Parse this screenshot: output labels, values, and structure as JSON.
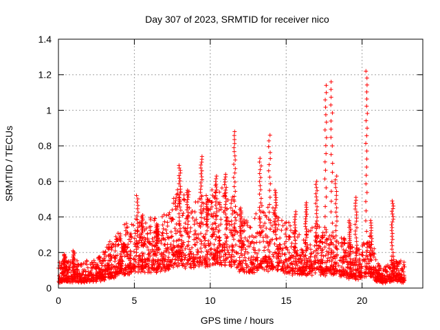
{
  "chart_data": {
    "type": "scatter",
    "title": "Day 307 of 2023, SRMTID for receiver nico",
    "xlabel": "GPS time / hours",
    "ylabel": "SRMTID / TECUs",
    "xlim": [
      0,
      24
    ],
    "ylim": [
      0,
      1.4
    ],
    "xticks": [
      0,
      5,
      10,
      15,
      20
    ],
    "xtick_labels": [
      "0",
      "5",
      "10",
      "15",
      "20"
    ],
    "yticks": [
      0,
      0.2,
      0.4,
      0.6,
      0.8,
      1,
      1.2,
      1.4
    ],
    "ytick_labels": [
      "0",
      "0.2",
      "0.4",
      "0.6",
      "0.8",
      "1",
      "1.2",
      "1.4"
    ],
    "grid": true,
    "marker": "+",
    "color": "#ff0000",
    "series": [
      {
        "name": "SRMTID",
        "profile": [
          [
            0.0,
            0.08
          ],
          [
            0.5,
            0.09
          ],
          [
            1.0,
            0.09
          ],
          [
            1.5,
            0.08
          ],
          [
            2.0,
            0.09
          ],
          [
            2.5,
            0.1
          ],
          [
            3.0,
            0.12
          ],
          [
            3.5,
            0.15
          ],
          [
            4.0,
            0.18
          ],
          [
            4.5,
            0.21
          ],
          [
            5.0,
            0.22
          ],
          [
            5.5,
            0.24
          ],
          [
            6.0,
            0.22
          ],
          [
            6.5,
            0.23
          ],
          [
            7.0,
            0.25
          ],
          [
            7.5,
            0.28
          ],
          [
            8.0,
            0.32
          ],
          [
            8.5,
            0.31
          ],
          [
            9.0,
            0.3
          ],
          [
            9.5,
            0.31
          ],
          [
            10.0,
            0.33
          ],
          [
            10.5,
            0.33
          ],
          [
            11.0,
            0.3
          ],
          [
            11.5,
            0.28
          ],
          [
            12.0,
            0.25
          ],
          [
            12.5,
            0.22
          ],
          [
            13.0,
            0.24
          ],
          [
            13.5,
            0.27
          ],
          [
            14.0,
            0.26
          ],
          [
            14.5,
            0.24
          ],
          [
            15.0,
            0.22
          ],
          [
            15.5,
            0.2
          ],
          [
            16.0,
            0.19
          ],
          [
            16.5,
            0.18
          ],
          [
            17.0,
            0.22
          ],
          [
            17.5,
            0.18
          ],
          [
            18.0,
            0.2
          ],
          [
            18.5,
            0.17
          ],
          [
            19.0,
            0.15
          ],
          [
            19.5,
            0.13
          ],
          [
            20.0,
            0.14
          ],
          [
            20.5,
            0.18
          ],
          [
            21.0,
            0.08
          ],
          [
            21.5,
            0.07
          ],
          [
            22.0,
            0.1
          ],
          [
            22.5,
            0.09
          ],
          [
            22.8,
            0.08
          ]
        ],
        "spikes": [
          [
            0.4,
            0.19
          ],
          [
            1.0,
            0.21
          ],
          [
            4.3,
            0.25
          ],
          [
            5.2,
            0.52
          ],
          [
            5.5,
            0.41
          ],
          [
            6.5,
            0.36
          ],
          [
            8.0,
            0.69
          ],
          [
            8.5,
            0.55
          ],
          [
            9.4,
            0.74
          ],
          [
            9.8,
            0.5
          ],
          [
            10.4,
            0.63
          ],
          [
            11.0,
            0.64
          ],
          [
            11.6,
            0.88
          ],
          [
            12.0,
            0.45
          ],
          [
            13.3,
            0.73
          ],
          [
            13.9,
            0.86
          ],
          [
            14.3,
            0.55
          ],
          [
            15.6,
            0.43
          ],
          [
            16.3,
            0.48
          ],
          [
            17.0,
            0.6
          ],
          [
            17.6,
            1.14
          ],
          [
            18.0,
            1.16
          ],
          [
            18.3,
            0.63
          ],
          [
            19.2,
            0.38
          ],
          [
            19.6,
            0.51
          ],
          [
            20.3,
            1.22
          ],
          [
            20.6,
            0.38
          ],
          [
            22.0,
            0.49
          ]
        ],
        "x_range": [
          0.0,
          22.8
        ]
      }
    ]
  }
}
